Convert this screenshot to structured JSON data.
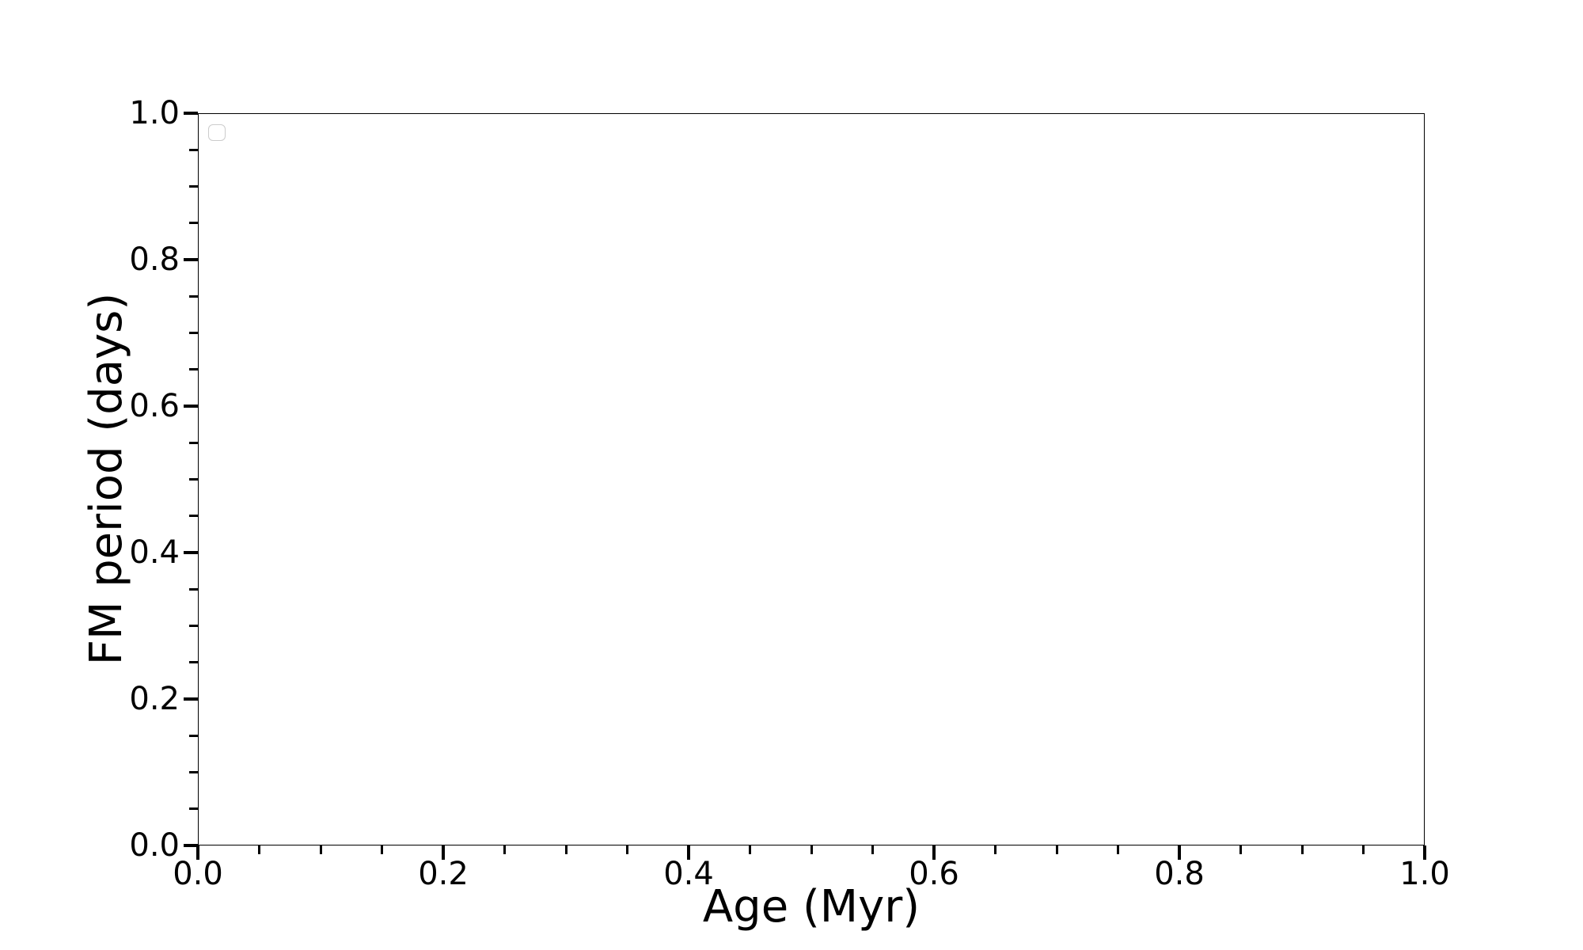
{
  "chart_data": {
    "type": "scatter",
    "title": "",
    "xlabel": "Age (Myr)",
    "ylabel": "FM period (days)",
    "xlim": [
      0.0,
      1.0
    ],
    "ylim": [
      0.0,
      1.0
    ],
    "grid": false,
    "x_ticks": {
      "values": [
        0.0,
        0.2,
        0.4,
        0.6,
        0.8,
        1.0
      ],
      "labels": [
        "0.0",
        "0.2",
        "0.4",
        "0.6",
        "0.8",
        "1.0"
      ]
    },
    "y_ticks": {
      "values": [
        0.0,
        0.2,
        0.4,
        0.6,
        0.8,
        1.0
      ],
      "labels": [
        "0.0",
        "0.2",
        "0.4",
        "0.6",
        "0.8",
        "1.0"
      ]
    },
    "x_minor_ticks": [
      0.05,
      0.1,
      0.15,
      0.25,
      0.3,
      0.35,
      0.45,
      0.5,
      0.55,
      0.65,
      0.7,
      0.75,
      0.85,
      0.9,
      0.95
    ],
    "y_minor_ticks": [
      0.05,
      0.1,
      0.15,
      0.25,
      0.3,
      0.35,
      0.45,
      0.5,
      0.55,
      0.65,
      0.7,
      0.75,
      0.85,
      0.9,
      0.95
    ],
    "series": [],
    "legend": {
      "visible": true,
      "position": "upper-left",
      "entries": []
    }
  },
  "colors": {
    "background": "#ffffff",
    "spine": "#000000",
    "tick": "#000000",
    "text": "#000000",
    "legend_border": "#cccccc"
  }
}
